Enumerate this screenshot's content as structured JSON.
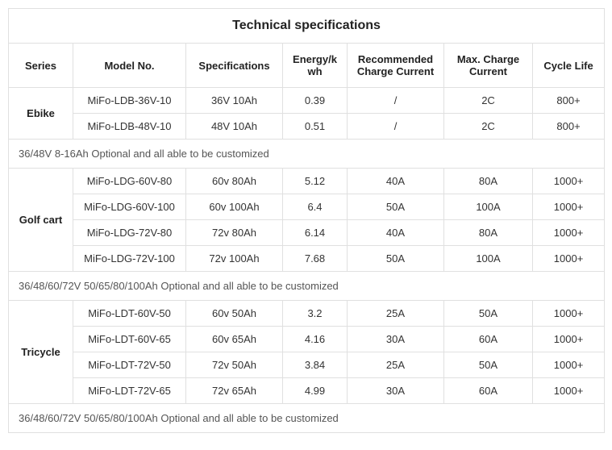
{
  "title": "Technical specifications",
  "headers": {
    "series": "Series",
    "model": "Model No.",
    "specs": "Specifications",
    "energy": "Energy/kwh",
    "rec_charge": "Recommended Charge Current",
    "max_charge": "Max. Charge Current",
    "cycle": "Cycle Life"
  },
  "groups": [
    {
      "series": "Ebike",
      "rows": [
        {
          "model": "MiFo-LDB-36V-10",
          "specs": "36V 10Ah",
          "energy": "0.39",
          "rec": "/",
          "max": "2C",
          "cycle": "800+"
        },
        {
          "model": "MiFo-LDB-48V-10",
          "specs": "48V 10Ah",
          "energy": "0.51",
          "rec": "/",
          "max": "2C",
          "cycle": "800+"
        }
      ],
      "note": "36/48V 8-16Ah Optional and all able to be customized"
    },
    {
      "series": "Golf cart",
      "rows": [
        {
          "model": "MiFo-LDG-60V-80",
          "specs": "60v 80Ah",
          "energy": "5.12",
          "rec": "40A",
          "max": "80A",
          "cycle": "1000+"
        },
        {
          "model": "MiFo-LDG-60V-100",
          "specs": "60v 100Ah",
          "energy": "6.4",
          "rec": "50A",
          "max": "100A",
          "cycle": "1000+"
        },
        {
          "model": "MiFo-LDG-72V-80",
          "specs": "72v 80Ah",
          "energy": "6.14",
          "rec": "40A",
          "max": "80A",
          "cycle": "1000+"
        },
        {
          "model": "MiFo-LDG-72V-100",
          "specs": "72v 100Ah",
          "energy": "7.68",
          "rec": "50A",
          "max": "100A",
          "cycle": "1000+"
        }
      ],
      "note": "36/48/60/72V 50/65/80/100Ah Optional and all able to be customized"
    },
    {
      "series": "Tricycle",
      "rows": [
        {
          "model": "MiFo-LDT-60V-50",
          "specs": "60v 50Ah",
          "energy": "3.2",
          "rec": "25A",
          "max": "50A",
          "cycle": "1000+"
        },
        {
          "model": "MiFo-LDT-60V-65",
          "specs": "60v 65Ah",
          "energy": "4.16",
          "rec": "30A",
          "max": "60A",
          "cycle": "1000+"
        },
        {
          "model": "MiFo-LDT-72V-50",
          "specs": "72v 50Ah",
          "energy": "3.84",
          "rec": "25A",
          "max": "50A",
          "cycle": "1000+"
        },
        {
          "model": "MiFo-LDT-72V-65",
          "specs": "72v 65Ah",
          "energy": "4.99",
          "rec": "30A",
          "max": "60A",
          "cycle": "1000+"
        }
      ],
      "note": "36/48/60/72V 50/65/80/100Ah Optional and all able to be customized"
    }
  ]
}
